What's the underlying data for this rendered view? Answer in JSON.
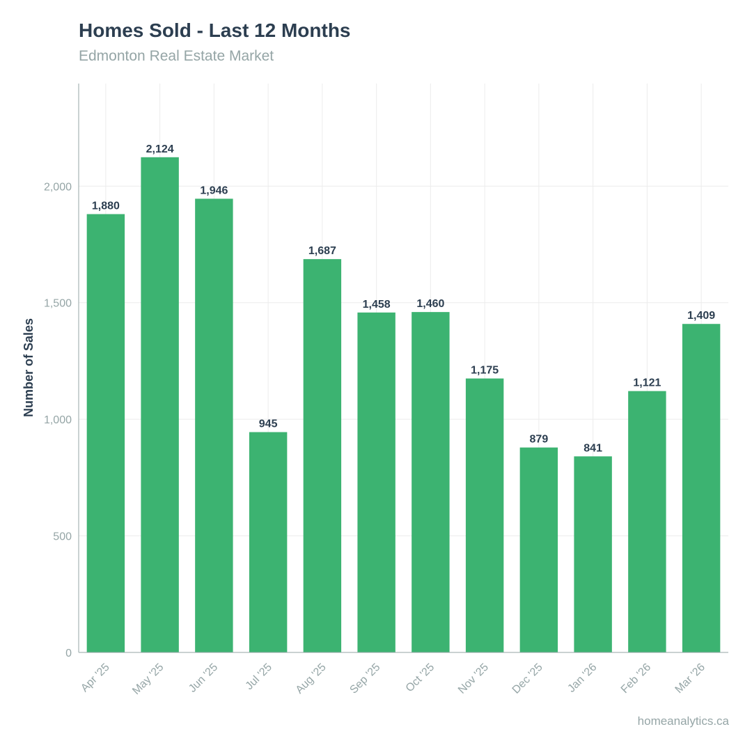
{
  "chart_data": {
    "type": "bar",
    "title": "Homes Sold - Last 12 Months",
    "subtitle": "Edmonton Real Estate Market",
    "xlabel": "",
    "ylabel": "Number of Sales",
    "categories": [
      "Apr '25",
      "May '25",
      "Jun '25",
      "Jul '25",
      "Aug '25",
      "Sep '25",
      "Oct '25",
      "Nov '25",
      "Dec '25",
      "Jan '26",
      "Feb '26",
      "Mar '26"
    ],
    "values": [
      1880,
      2124,
      1946,
      945,
      1687,
      1458,
      1460,
      1175,
      879,
      841,
      1121,
      1409
    ],
    "data_labels": [
      "1,880",
      "2,124",
      "1,946",
      "945",
      "1,687",
      "1,458",
      "1,460",
      "1,175",
      "879",
      "841",
      "1,121",
      "1,409"
    ],
    "ylim": [
      0,
      2440
    ],
    "yticks": [
      0,
      500,
      1000,
      1500,
      2000
    ],
    "ytick_labels": [
      "0",
      "500",
      "1,000",
      "1,500",
      "2,000"
    ],
    "grid": true,
    "legend": "none",
    "bar_color": "#3cb371",
    "source": "homeanalytics.ca"
  }
}
